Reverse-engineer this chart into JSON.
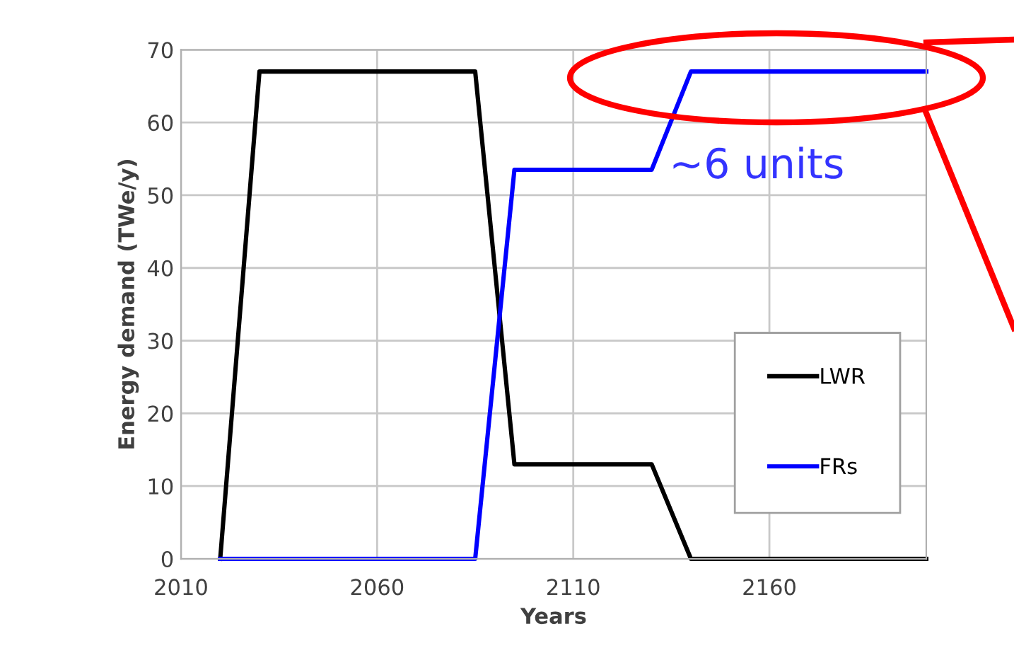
{
  "chart_data": {
    "type": "line",
    "xlabel": "Years",
    "ylabel": "Energy demand (TWe/y)",
    "xlim": [
      2010,
      2200
    ],
    "xticks": [
      2010,
      2060,
      2110,
      2160
    ],
    "ylim": [
      0,
      70
    ],
    "yticks": [
      0,
      10,
      20,
      30,
      40,
      50,
      60,
      70
    ],
    "grid": true,
    "legend": "bottom right",
    "marker": "none",
    "line_style": "solid",
    "series": [
      {
        "name": "LWR",
        "color": "#000000",
        "x": [
          2020,
          2030,
          2085,
          2095,
          2130,
          2140,
          2200
        ],
        "values": [
          0,
          67,
          67,
          13,
          13,
          0,
          0
        ]
      },
      {
        "name": "FRs",
        "color": "#0000ff",
        "x": [
          2020,
          2085,
          2095,
          2130,
          2140,
          2200
        ],
        "values": [
          0,
          0,
          53.5,
          53.5,
          67,
          67
        ]
      }
    ],
    "annotations": [
      "~6 units"
    ]
  }
}
